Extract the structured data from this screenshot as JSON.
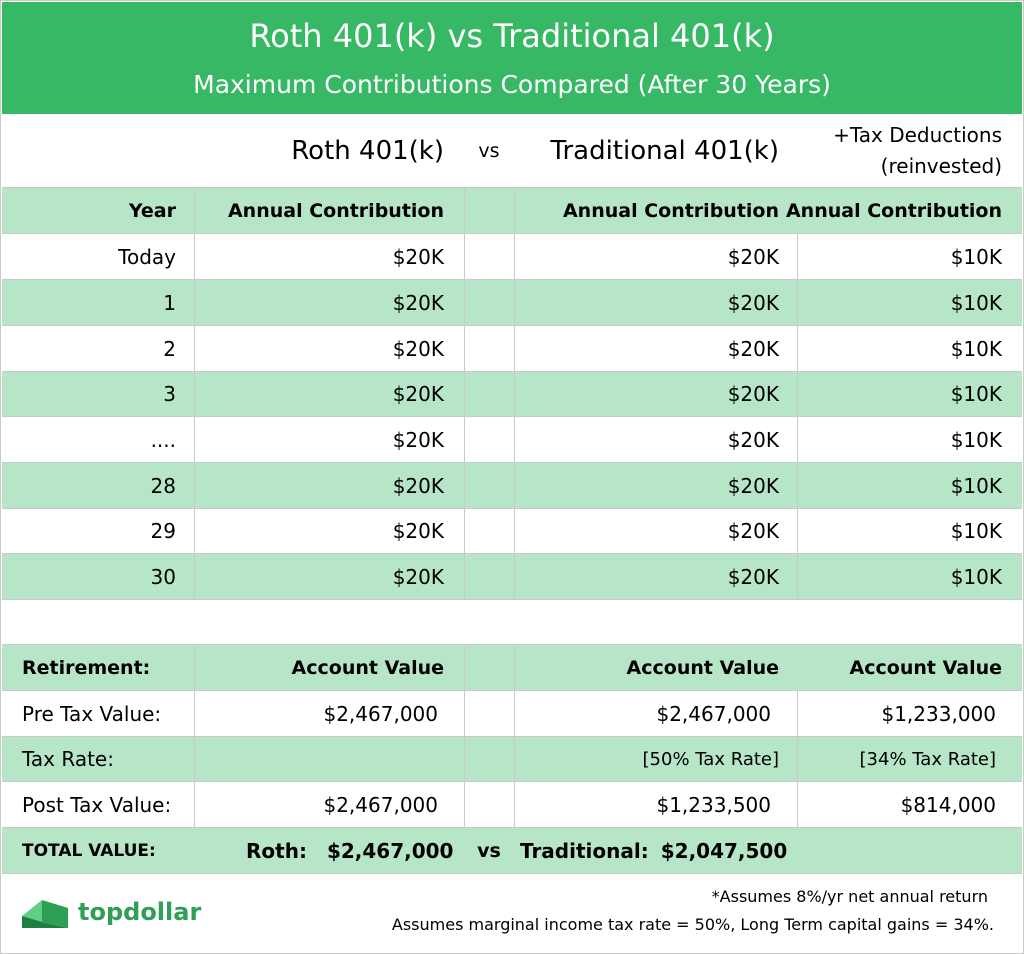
{
  "banner": {
    "title": "Roth 401(k) vs Traditional 401(k)",
    "subtitle": "Maximum Contributions Compared (After 30 Years)"
  },
  "header": {
    "roth": "Roth 401(k)",
    "vs": "vs",
    "traditional": "Traditional 401(k)",
    "deductions_line1": "+Tax Deductions",
    "deductions_line2": "(reinvested)"
  },
  "columns": {
    "year": "Year",
    "roth": "Annual Contribution",
    "traditional": "Annual Contribution",
    "deductions": "Annual Contribution"
  },
  "rows": [
    {
      "year": "Today",
      "roth": "$20K",
      "traditional": "$20K",
      "deductions": "$10K"
    },
    {
      "year": "1",
      "roth": "$20K",
      "traditional": "$20K",
      "deductions": "$10K"
    },
    {
      "year": "2",
      "roth": "$20K",
      "traditional": "$20K",
      "deductions": "$10K"
    },
    {
      "year": "3",
      "roth": "$20K",
      "traditional": "$20K",
      "deductions": "$10K"
    },
    {
      "year": "....",
      "roth": "$20K",
      "traditional": "$20K",
      "deductions": "$10K"
    },
    {
      "year": "28",
      "roth": "$20K",
      "traditional": "$20K",
      "deductions": "$10K"
    },
    {
      "year": "29",
      "roth": "$20K",
      "traditional": "$20K",
      "deductions": "$10K"
    },
    {
      "year": "30",
      "roth": "$20K",
      "traditional": "$20K",
      "deductions": "$10K"
    }
  ],
  "retirement": {
    "label": "Retirement:",
    "roth": "Account Value",
    "traditional": "Account Value",
    "deductions": "Account Value"
  },
  "pretax": {
    "label": "Pre Tax Value:",
    "roth": "$2,467,000",
    "traditional": "$2,467,000",
    "deductions": "$1,233,000"
  },
  "taxrate": {
    "label": "Tax Rate:",
    "roth": "",
    "traditional": "[50% Tax Rate]",
    "deductions": "[34% Tax Rate]"
  },
  "posttax": {
    "label": "Post Tax Value:",
    "roth": "$2,467,000",
    "traditional": "$1,233,500",
    "deductions": "$814,000"
  },
  "total": {
    "label": "TOTAL VALUE:",
    "roth_label": "Roth:",
    "roth_value": "$2,467,000",
    "vs": "vs",
    "trad_label": "Traditional:",
    "trad_value": "$2,047,500"
  },
  "footer": {
    "brand": "topdollar",
    "note1": "*Assumes 8%/yr net annual return",
    "note2": "Assumes marginal income tax rate = 50%, Long Term capital gains = 34%."
  },
  "colors": {
    "banner": "#37b864",
    "stripe": "#b6e5c7",
    "brand": "#2f9f55"
  }
}
